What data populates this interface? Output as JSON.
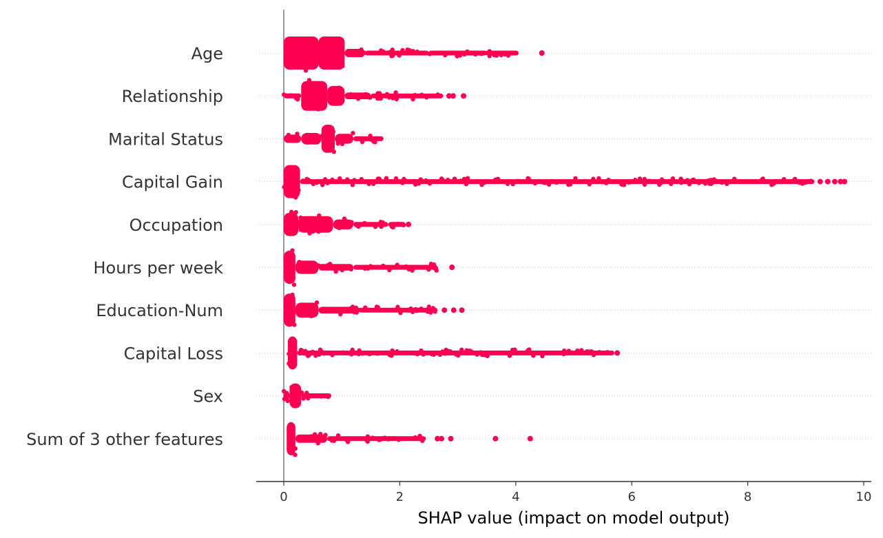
{
  "chart_data": {
    "type": "scatter",
    "subtype": "beeswarm",
    "xlabel": "SHAP value (impact on model output)",
    "xlim": [
      -0.48,
      10.1
    ],
    "xticks": [
      0,
      2,
      4,
      6,
      8,
      10
    ],
    "grid": "horizontal-dotted",
    "color": "#ff0051",
    "zero_line_color": "#999999",
    "features": [
      {
        "name": "Age",
        "segments": [
          [
            0.0,
            0.6,
            1.0
          ],
          [
            0.6,
            1.05,
            1.0
          ],
          [
            1.05,
            1.4,
            0.25
          ],
          [
            1.4,
            2.5,
            0.1
          ],
          [
            2.5,
            3.5,
            0.07
          ],
          [
            3.5,
            4.05,
            0.04
          ]
        ],
        "outliers": [
          4.45
        ]
      },
      {
        "name": "Relationship",
        "segments": [
          [
            0.0,
            0.3,
            0.15
          ],
          [
            0.3,
            0.75,
            0.9
          ],
          [
            0.75,
            1.05,
            0.6
          ],
          [
            1.05,
            1.5,
            0.2
          ],
          [
            1.5,
            2.75,
            0.08
          ]
        ],
        "outliers": [
          2.85,
          2.92,
          3.1
        ]
      },
      {
        "name": "Marital Status",
        "segments": [
          [
            0.0,
            0.3,
            0.25
          ],
          [
            0.3,
            0.65,
            0.35
          ],
          [
            0.65,
            0.88,
            0.85
          ],
          [
            0.88,
            1.2,
            0.3
          ],
          [
            1.2,
            1.72,
            0.12
          ]
        ],
        "outliers": []
      },
      {
        "name": "Capital Gain",
        "segments": [
          [
            0.0,
            0.28,
            1.0
          ],
          [
            0.28,
            9.15,
            0.06
          ]
        ],
        "outliers": [
          9.25,
          9.38,
          9.5,
          9.6,
          9.67
        ]
      },
      {
        "name": "Occupation",
        "segments": [
          [
            0.0,
            0.25,
            0.7
          ],
          [
            0.25,
            0.85,
            0.5
          ],
          [
            0.85,
            1.2,
            0.3
          ],
          [
            1.2,
            1.8,
            0.12
          ],
          [
            1.8,
            2.1,
            0.1
          ]
        ],
        "outliers": [
          2.15
        ]
      },
      {
        "name": "Hours per week",
        "segments": [
          [
            0.0,
            0.2,
            1.0
          ],
          [
            0.2,
            0.6,
            0.4
          ],
          [
            0.6,
            1.2,
            0.2
          ],
          [
            1.2,
            2.65,
            0.1
          ]
        ],
        "outliers": [
          2.9
        ]
      },
      {
        "name": "Education-Num",
        "segments": [
          [
            0.0,
            0.2,
            1.0
          ],
          [
            0.2,
            0.6,
            0.45
          ],
          [
            0.6,
            1.3,
            0.2
          ],
          [
            1.3,
            2.65,
            0.1
          ]
        ],
        "outliers": [
          2.77,
          2.93,
          3.07
        ]
      },
      {
        "name": "Capital Loss",
        "segments": [
          [
            0.07,
            0.23,
            1.0
          ],
          [
            0.23,
            5.7,
            0.06
          ]
        ],
        "outliers": [
          5.75
        ]
      },
      {
        "name": "Sex",
        "segments": [
          [
            0.0,
            0.1,
            0.3
          ],
          [
            0.1,
            0.3,
            0.75
          ],
          [
            0.3,
            0.82,
            0.15
          ]
        ],
        "outliers": []
      },
      {
        "name": "Sum of 3 other features",
        "segments": [
          [
            0.05,
            0.2,
            1.0
          ],
          [
            0.2,
            0.75,
            0.25
          ],
          [
            0.75,
            2.45,
            0.08
          ]
        ],
        "outliers": [
          2.65,
          2.72,
          2.88,
          3.65,
          4.25
        ]
      }
    ]
  }
}
